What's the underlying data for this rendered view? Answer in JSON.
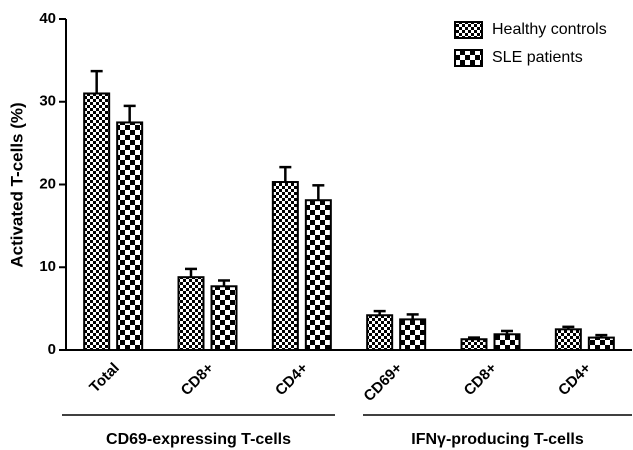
{
  "chart_data": {
    "type": "bar",
    "y_label": "Activated T-cells (%)",
    "groups": [
      {
        "label": "CD69-expressing T-cells",
        "categories": [
          "Total",
          "CD8+",
          "CD4+"
        ]
      },
      {
        "label": "IFNγ-producing T-cells",
        "categories": [
          "CD69+",
          "CD8+",
          "CD4+"
        ]
      }
    ],
    "series": [
      {
        "name": "Healthy controls",
        "color": "#000000",
        "values": [
          31,
          8.8,
          20.3,
          4.2,
          1.3,
          2.5
        ],
        "errors": [
          2.7,
          1.0,
          1.8,
          0.5,
          0.2,
          0.3
        ]
      },
      {
        "name": "SLE patients",
        "color": "#000000",
        "values": [
          27.5,
          7.7,
          18.1,
          3.7,
          1.9,
          1.5
        ],
        "errors": [
          2.0,
          0.7,
          1.8,
          0.6,
          0.4,
          0.3
        ]
      }
    ],
    "ylim": [
      0,
      40
    ],
    "yticks": [
      0,
      10,
      20,
      30,
      40
    ],
    "legend": "top-right"
  }
}
